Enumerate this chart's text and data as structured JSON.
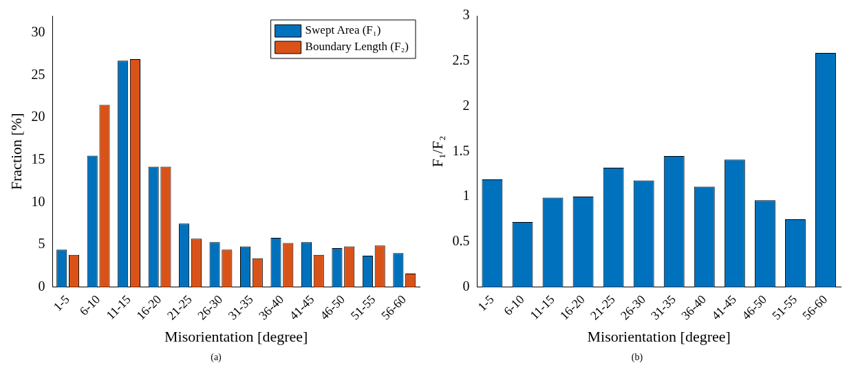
{
  "chart_data": [
    {
      "type": "bar",
      "categories": [
        "1-5",
        "6-10",
        "11-15",
        "16-20",
        "21-25",
        "26-30",
        "31-35",
        "36-40",
        "41-45",
        "46-50",
        "51-55",
        "56-60"
      ],
      "series": [
        {
          "name": "Swept Area (F₁)",
          "color": "#0072bd",
          "values": [
            4.4,
            15.5,
            26.7,
            14.2,
            7.5,
            5.3,
            4.8,
            5.8,
            5.3,
            4.6,
            3.7,
            4.0
          ]
        },
        {
          "name": "Boundary Length (F₂)",
          "color": "#d95319",
          "values": [
            3.8,
            21.5,
            26.9,
            14.2,
            5.7,
            4.4,
            3.4,
            5.2,
            3.8,
            4.8,
            4.9,
            1.6
          ]
        }
      ],
      "xlabel": "Misorientation [degree]",
      "ylabel": "Fraction [%]",
      "ylim": [
        0,
        32
      ],
      "yticks": [
        0,
        5,
        10,
        15,
        20,
        25,
        30
      ],
      "legend": "top right",
      "grid": false,
      "annotations": [
        "(a)"
      ]
    },
    {
      "type": "bar",
      "categories": [
        "1-5",
        "6-10",
        "11-15",
        "16-20",
        "21-25",
        "26-30",
        "31-35",
        "36-40",
        "41-45",
        "46-50",
        "51-55",
        "56-60"
      ],
      "series": [
        {
          "color": "#0072bd",
          "values": [
            1.19,
            0.72,
            0.99,
            1.0,
            1.32,
            1.18,
            1.45,
            1.11,
            1.41,
            0.96,
            0.75,
            2.59
          ]
        }
      ],
      "xlabel": "Misorientation [degree]",
      "ylabel": "F₁/F₂",
      "ylim": [
        0,
        3
      ],
      "yticks": [
        0,
        0.5,
        1,
        1.5,
        2,
        2.5,
        3
      ],
      "legend": false,
      "grid": false,
      "annotations": [
        "(b)"
      ]
    }
  ]
}
